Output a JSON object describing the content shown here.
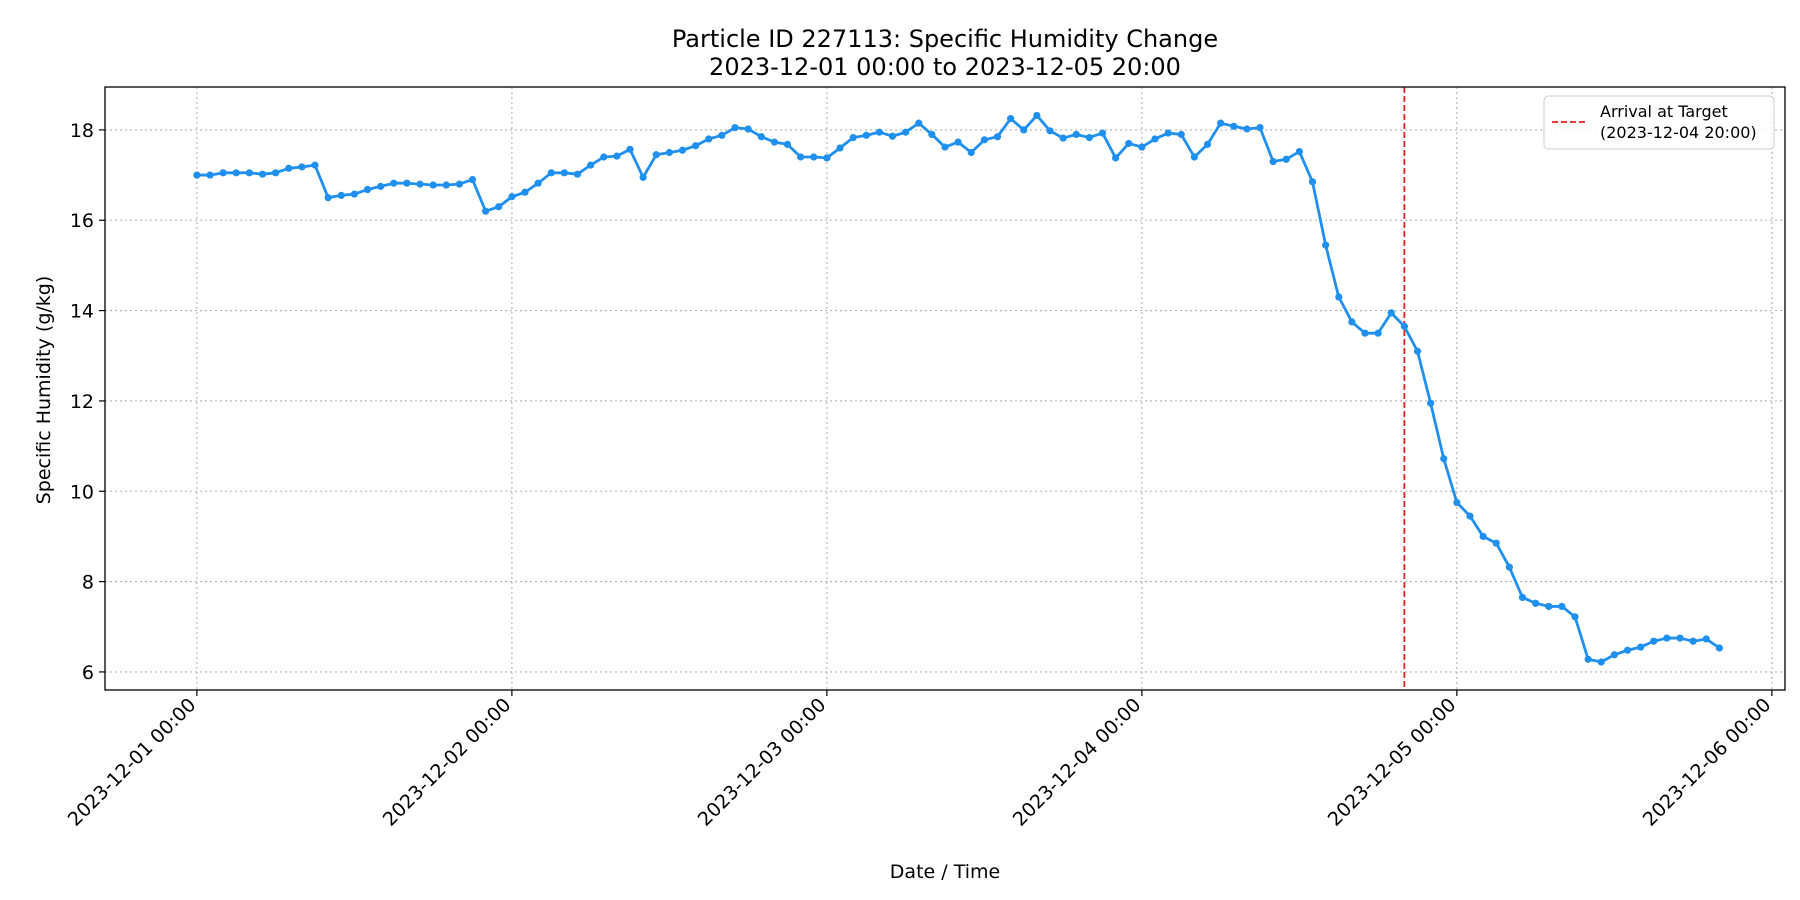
{
  "chart_data": {
    "type": "line",
    "title_line1": "Particle ID 227113: Specific Humidity Change",
    "title_line2": "2023-12-01 00:00 to 2023-12-05 20:00",
    "xlabel": "Date / Time",
    "ylabel": "Specific Humidity (g/kg)",
    "x_start": "2023-12-01 00:00",
    "x_step_hours": 1,
    "xlim": [
      "2023-11-30 17:00",
      "2023-12-06 01:00"
    ],
    "ylim": [
      5.6,
      18.95
    ],
    "x_ticks": [
      "2023-12-01 00:00",
      "2023-12-02 00:00",
      "2023-12-03 00:00",
      "2023-12-04 00:00",
      "2023-12-05 00:00",
      "2023-12-06 00:00"
    ],
    "y_ticks": [
      6,
      8,
      10,
      12,
      14,
      16,
      18
    ],
    "y_tick_labels": [
      "6",
      "8",
      "10",
      "12",
      "14",
      "16",
      "18"
    ],
    "grid": true,
    "legend_position": "top-right",
    "series": [
      {
        "color": "#1f8ff0",
        "values": [
          17.0,
          17.0,
          17.05,
          17.05,
          17.05,
          17.02,
          17.05,
          17.15,
          17.18,
          17.22,
          16.5,
          16.55,
          16.58,
          16.68,
          16.75,
          16.82,
          16.82,
          16.8,
          16.78,
          16.78,
          16.8,
          16.9,
          16.2,
          16.3,
          16.52,
          16.62,
          16.82,
          17.05,
          17.05,
          17.02,
          17.22,
          17.4,
          17.42,
          17.57,
          16.95,
          17.45,
          17.5,
          17.55,
          17.65,
          17.8,
          17.88,
          18.05,
          18.02,
          17.85,
          17.73,
          17.68,
          17.4,
          17.4,
          17.38,
          17.6,
          17.83,
          17.88,
          17.95,
          17.86,
          17.95,
          18.15,
          17.9,
          17.62,
          17.73,
          17.5,
          17.78,
          17.85,
          18.25,
          18.0,
          18.32,
          17.98,
          17.82,
          17.9,
          17.83,
          17.93,
          17.38,
          17.7,
          17.62,
          17.8,
          17.93,
          17.9,
          17.4,
          17.68,
          18.15,
          18.08,
          18.02,
          18.05,
          17.3,
          17.35,
          17.52,
          16.85,
          15.45,
          14.3,
          13.75,
          13.5,
          13.5,
          13.95,
          13.65,
          13.1,
          11.95,
          10.72,
          9.75,
          9.45,
          9.0,
          8.85,
          8.32,
          7.65,
          7.52,
          7.45,
          7.45,
          7.22,
          6.28,
          6.22,
          6.38,
          6.48,
          6.55,
          6.68,
          6.75,
          6.75,
          6.68,
          6.73,
          6.53
        ]
      }
    ],
    "annotations": [
      {
        "type": "vline",
        "x": "2023-12-04 20:00",
        "color": "#e8201f",
        "style": "dashed",
        "legend_line1": "Arrival at Target",
        "legend_line2": "(2023-12-04 20:00)"
      }
    ]
  }
}
